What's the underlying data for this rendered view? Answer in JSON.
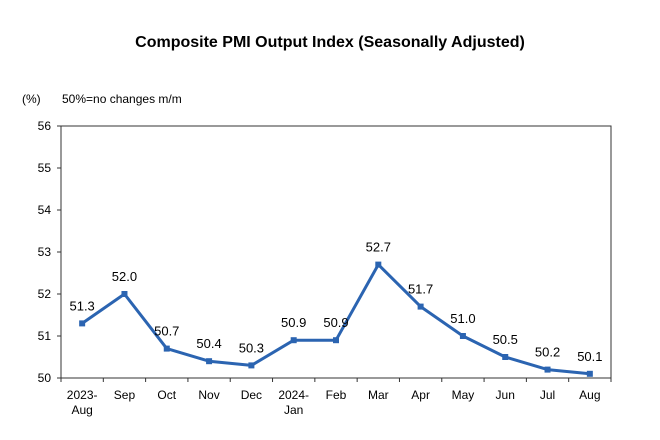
{
  "chart_data": {
    "type": "line",
    "title": "Composite PMI Output Index (Seasonally Adjusted)",
    "ylabel": "(%)",
    "annotation": "50%=no changes m/m",
    "categories": [
      [
        "2023-",
        "Aug"
      ],
      [
        "Sep"
      ],
      [
        "Oct"
      ],
      [
        "Nov"
      ],
      [
        "Dec"
      ],
      [
        "2024-",
        "Jan"
      ],
      [
        "Feb"
      ],
      [
        "Mar"
      ],
      [
        "Apr"
      ],
      [
        "May"
      ],
      [
        "Jun"
      ],
      [
        "Jul"
      ],
      [
        "Aug"
      ]
    ],
    "values": [
      51.3,
      52.0,
      50.7,
      50.4,
      50.3,
      50.9,
      50.9,
      52.7,
      51.7,
      51.0,
      50.5,
      50.2,
      50.1
    ],
    "data_labels": [
      "51.3",
      "52.0",
      "50.7",
      "50.4",
      "50.3",
      "50.9",
      "50.9",
      "52.7",
      "51.7",
      "51.0",
      "50.5",
      "50.2",
      "50.1"
    ],
    "ylim": [
      50,
      56
    ],
    "yticks": [
      50,
      51,
      52,
      53,
      54,
      55,
      56
    ],
    "grid": false,
    "colors": {
      "line": "#2b64b1",
      "marker": "#2b64b1",
      "frame": "#333333"
    }
  }
}
